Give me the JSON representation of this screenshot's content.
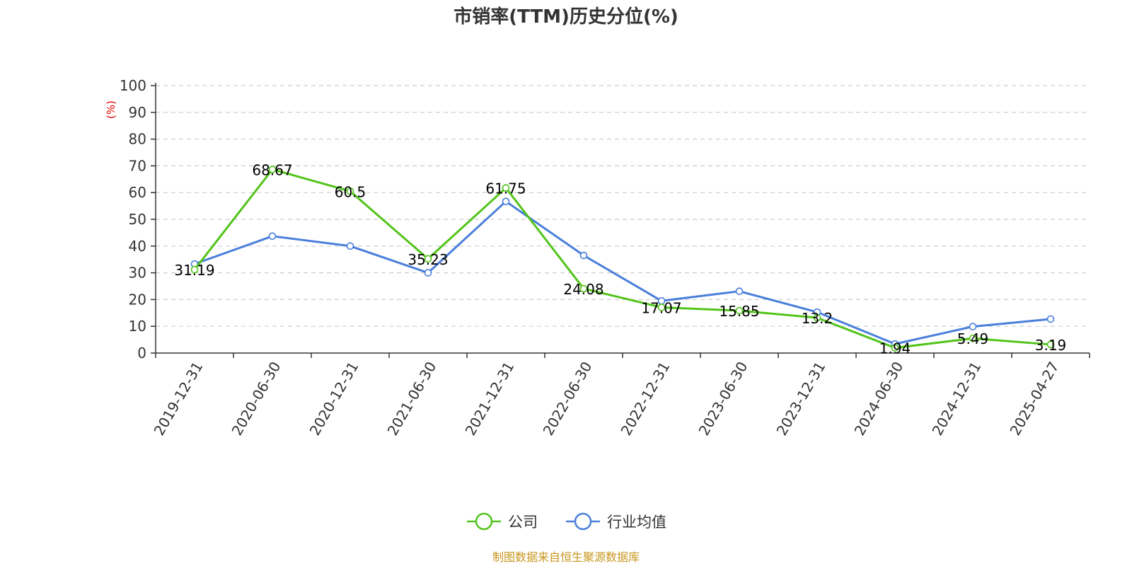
{
  "chart_data": {
    "type": "line",
    "title": "市销率(TTM)历史分位(%)",
    "ylabel": "(%)",
    "ylim": [
      0,
      100
    ],
    "yticks": [
      0,
      10,
      20,
      30,
      40,
      50,
      60,
      70,
      80,
      90,
      100
    ],
    "grid": true,
    "legend_position": "bottom",
    "categories": [
      "2019-12-31",
      "2020-06-30",
      "2020-12-31",
      "2021-06-30",
      "2021-12-31",
      "2022-06-30",
      "2022-12-31",
      "2023-06-30",
      "2023-12-31",
      "2024-06-30",
      "2024-12-31",
      "2025-04-27"
    ],
    "series": [
      {
        "name": "公司",
        "color": "#52c41a",
        "values": [
          31.19,
          68.67,
          60.5,
          35.23,
          61.75,
          24.08,
          17.07,
          15.85,
          13.2,
          1.94,
          5.49,
          3.19
        ],
        "data_labels": [
          "31.19",
          "68.67",
          "60.5",
          "35.23",
          "61.75",
          "24.08",
          "17.07",
          "15.85",
          "13.2",
          "1.94",
          "5.49",
          "3.19"
        ]
      },
      {
        "name": "行业均值",
        "color": "#4a7fdb",
        "values": [
          33.3,
          43.7,
          40.0,
          30.0,
          56.7,
          36.5,
          19.5,
          23.1,
          15.3,
          3.4,
          9.9,
          12.7
        ]
      }
    ],
    "source": "制图数据来自恒生聚源数据库"
  }
}
